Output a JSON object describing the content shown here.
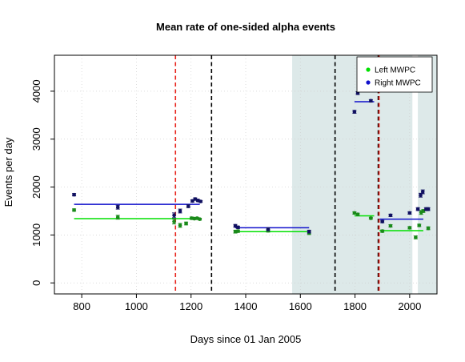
{
  "chart_data": {
    "type": "scatter",
    "title": "Mean rate of one-sided alpha events",
    "xlabel": "Days since 01 Jan 2005",
    "ylabel": "Events per day",
    "xlim": [
      700,
      2100
    ],
    "ylim": [
      -230,
      4750
    ],
    "xticks": [
      800,
      1000,
      1200,
      1400,
      1600,
      1800,
      2000
    ],
    "yticks": [
      0,
      1000,
      2000,
      3000,
      4000
    ],
    "grid": true,
    "legend_position": "top-right",
    "background_bands": [
      {
        "x0": 1570,
        "x1": 2010,
        "color": "#dde9e9"
      },
      {
        "x0": 2030,
        "x1": 2100,
        "color": "#dde9e9"
      }
    ],
    "vertical_lines": [
      {
        "x": 1143,
        "color": "#e8231b"
      },
      {
        "x": 1275,
        "color": "#000000"
      },
      {
        "x": 1727,
        "color": "#000000"
      },
      {
        "x": 1885,
        "color": "#000000"
      },
      {
        "x": 1888,
        "color": "#e8231b"
      }
    ],
    "series": [
      {
        "name": "Left MWPC",
        "color": "#00e000",
        "marker_color": "#1a8a1a",
        "points": [
          {
            "x": 772,
            "y": 1520,
            "err": 25
          },
          {
            "x": 932,
            "y": 1370,
            "err": 40
          },
          {
            "x": 1138,
            "y": 1280,
            "err": 50
          },
          {
            "x": 1160,
            "y": 1200,
            "err": 40
          },
          {
            "x": 1182,
            "y": 1240,
            "err": 30
          },
          {
            "x": 1202,
            "y": 1350,
            "err": 25
          },
          {
            "x": 1212,
            "y": 1340,
            "err": 20
          },
          {
            "x": 1222,
            "y": 1350,
            "err": 20
          },
          {
            "x": 1232,
            "y": 1330,
            "err": 20
          },
          {
            "x": 1362,
            "y": 1070,
            "err": 30
          },
          {
            "x": 1372,
            "y": 1080,
            "err": 25
          },
          {
            "x": 1482,
            "y": 1090,
            "err": 30
          },
          {
            "x": 1632,
            "y": 1040,
            "err": 30
          },
          {
            "x": 1798,
            "y": 1460,
            "err": 25
          },
          {
            "x": 1810,
            "y": 1430,
            "err": 25
          },
          {
            "x": 1858,
            "y": 1350,
            "err": 20
          },
          {
            "x": 1900,
            "y": 1080,
            "err": 25
          },
          {
            "x": 1930,
            "y": 1190,
            "err": 25
          },
          {
            "x": 2000,
            "y": 1150,
            "err": 25
          },
          {
            "x": 2022,
            "y": 950,
            "err": 30
          },
          {
            "x": 2035,
            "y": 1200,
            "err": 25
          },
          {
            "x": 2042,
            "y": 1470,
            "err": 40
          },
          {
            "x": 2050,
            "y": 1500,
            "err": 30
          },
          {
            "x": 2068,
            "y": 1140,
            "err": 30
          }
        ],
        "averages": [
          {
            "x0": 772,
            "x1": 1232,
            "y": 1340
          },
          {
            "x0": 1362,
            "x1": 1632,
            "y": 1070
          },
          {
            "x0": 1798,
            "x1": 1870,
            "y": 1400
          },
          {
            "x0": 1890,
            "x1": 2050,
            "y": 1090
          }
        ]
      },
      {
        "name": "Right MWPC",
        "color": "#1010cc",
        "marker_color": "#101060",
        "points": [
          {
            "x": 772,
            "y": 1840,
            "err": 25
          },
          {
            "x": 932,
            "y": 1580,
            "err": 40
          },
          {
            "x": 1138,
            "y": 1410,
            "err": 50
          },
          {
            "x": 1160,
            "y": 1500,
            "err": 40
          },
          {
            "x": 1190,
            "y": 1600,
            "err": 30
          },
          {
            "x": 1205,
            "y": 1710,
            "err": 25
          },
          {
            "x": 1215,
            "y": 1750,
            "err": 25
          },
          {
            "x": 1225,
            "y": 1720,
            "err": 25
          },
          {
            "x": 1235,
            "y": 1700,
            "err": 20
          },
          {
            "x": 1362,
            "y": 1190,
            "err": 30
          },
          {
            "x": 1372,
            "y": 1160,
            "err": 25
          },
          {
            "x": 1482,
            "y": 1120,
            "err": 30
          },
          {
            "x": 1632,
            "y": 1070,
            "err": 30
          },
          {
            "x": 1798,
            "y": 3570,
            "err": 30
          },
          {
            "x": 1810,
            "y": 3960,
            "err": 30
          },
          {
            "x": 1858,
            "y": 3800,
            "err": 25
          },
          {
            "x": 1900,
            "y": 1280,
            "err": 25
          },
          {
            "x": 1930,
            "y": 1410,
            "err": 25
          },
          {
            "x": 2000,
            "y": 1460,
            "err": 25
          },
          {
            "x": 2030,
            "y": 1540,
            "err": 30
          },
          {
            "x": 2040,
            "y": 1830,
            "err": 40
          },
          {
            "x": 2048,
            "y": 1900,
            "err": 40
          },
          {
            "x": 2060,
            "y": 1540,
            "err": 30
          },
          {
            "x": 2068,
            "y": 1540,
            "err": 30
          }
        ],
        "averages": [
          {
            "x0": 772,
            "x1": 1232,
            "y": 1640
          },
          {
            "x0": 1362,
            "x1": 1632,
            "y": 1150
          },
          {
            "x0": 1798,
            "x1": 1870,
            "y": 3780
          },
          {
            "x0": 1890,
            "x1": 2050,
            "y": 1330
          }
        ]
      }
    ]
  }
}
